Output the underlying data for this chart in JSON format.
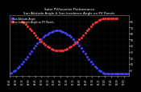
{
  "title_line1": "Solar PV/Inverter Performance",
  "title_line2": "Sun Altitude Angle & Sun Incidence Angle on PV Panels",
  "title_fontsize": 3.0,
  "background_color": "#000000",
  "plot_bg_color": "#000000",
  "grid_color": "#555555",
  "ylim": [
    -10,
    90
  ],
  "yticks": [
    0,
    10,
    20,
    30,
    40,
    50,
    60,
    70,
    80
  ],
  "xlim": [
    0,
    30
  ],
  "series": [
    {
      "label": "Sun Altitude Angle",
      "color": "#4444ff",
      "marker": "s",
      "markersize": 1.0,
      "x": [
        0,
        0.5,
        1,
        1.5,
        2,
        2.5,
        3,
        3.5,
        4,
        4.5,
        5,
        5.5,
        6,
        6.5,
        7,
        7.5,
        8,
        8.5,
        9,
        9.5,
        10,
        10.5,
        11,
        11.5,
        12,
        12.5,
        13,
        13.5,
        14,
        14.5,
        15,
        15.5,
        16,
        16.5,
        17,
        17.5,
        18,
        18.5,
        19,
        19.5,
        20,
        20.5,
        21,
        21.5,
        22,
        22.5,
        23,
        23.5,
        24,
        24.5,
        25,
        25.5,
        26,
        26.5,
        27,
        27.5,
        28,
        28.5,
        29,
        29.5,
        30
      ],
      "y": [
        -5,
        -4,
        -2,
        0,
        3,
        6,
        10,
        14,
        18,
        22,
        27,
        31,
        36,
        40,
        44,
        47,
        51,
        54,
        57,
        59,
        61,
        63,
        64,
        65,
        65,
        65,
        64,
        63,
        61,
        59,
        57,
        54,
        51,
        47,
        44,
        40,
        36,
        31,
        27,
        22,
        18,
        14,
        10,
        6,
        3,
        0,
        -2,
        -4,
        -5,
        -6,
        -6,
        -6,
        -6,
        -6,
        -6,
        -6,
        -6,
        -6,
        -6,
        -6,
        -6
      ]
    },
    {
      "label": "Sun Incidence Angle on PV Panels",
      "color": "#ff3333",
      "marker": "s",
      "markersize": 1.0,
      "x": [
        3,
        3.5,
        4,
        4.5,
        5,
        5.5,
        6,
        6.5,
        7,
        7.5,
        8,
        8.5,
        9,
        9.5,
        10,
        10.5,
        11,
        11.5,
        12,
        12.5,
        13,
        13.5,
        14,
        14.5,
        15,
        15.5,
        16,
        16.5,
        17,
        17.5,
        18,
        18.5,
        19,
        19.5,
        20,
        20.5,
        21,
        21.5,
        22,
        22.5,
        23,
        23.5,
        24,
        24.5,
        25,
        25.5,
        26,
        26.5,
        27
      ],
      "y": [
        80,
        78,
        75,
        72,
        68,
        65,
        61,
        57,
        53,
        50,
        47,
        44,
        41,
        39,
        37,
        35,
        34,
        33,
        32,
        32,
        32,
        33,
        34,
        35,
        37,
        39,
        41,
        44,
        47,
        50,
        53,
        57,
        61,
        65,
        68,
        72,
        75,
        78,
        80,
        82,
        83,
        84,
        85,
        85,
        85,
        85,
        85,
        85,
        85
      ]
    }
  ],
  "xtick_labels": [
    "05:45",
    "06:30",
    "07:15",
    "08:00",
    "08:45",
    "09:30",
    "10:15",
    "11:00",
    "11:45",
    "12:30",
    "13:15",
    "14:00",
    "14:45",
    "15:30",
    "16:15",
    "17:00",
    "17:45",
    "18:30",
    "19:00"
  ],
  "xtick_positions": [
    0,
    1.6,
    3.2,
    4.8,
    6.4,
    8.0,
    9.6,
    11.2,
    12.8,
    14.4,
    16.0,
    17.6,
    19.2,
    20.8,
    22.4,
    24.0,
    25.6,
    27.2,
    28.8
  ],
  "xtick_fontsize": 2.0,
  "ytick_fontsize": 2.2,
  "legend_fontsize": 2.2,
  "title_color": "#ffffff",
  "tick_color": "#ffffff",
  "legend_colors": [
    "#4444ff",
    "#ff3333"
  ],
  "legend_labels": [
    "Sun Altitude Angle",
    "Sun Incidence Angle on PV Panels"
  ]
}
